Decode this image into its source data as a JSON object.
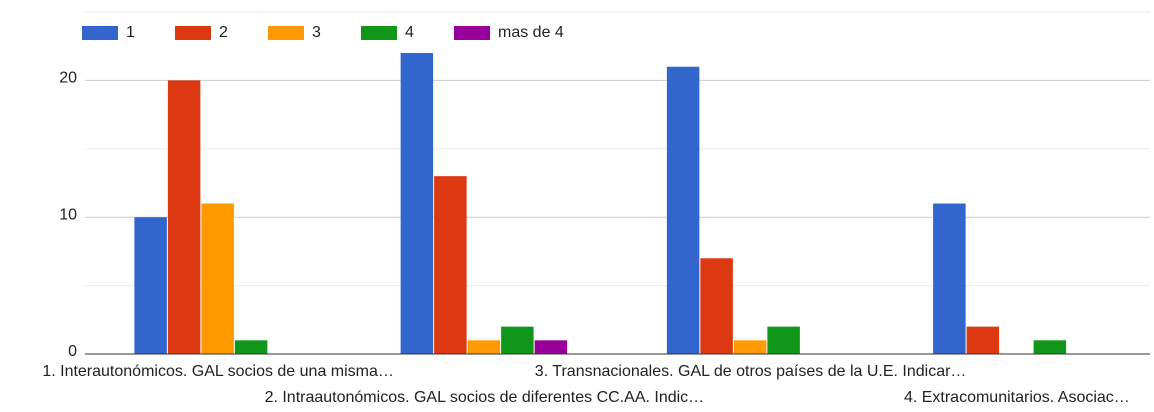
{
  "chart_data": {
    "type": "bar",
    "categories": [
      "1. Interautonómicos. GAL socios de una misma…",
      "2. Intraautonómicos. GAL socios de diferentes CC.AA. Indic…",
      "3. Transnacionales. GAL de otros países de la U.E. Indicar…",
      "4. Extracomunitarios. Asociac…"
    ],
    "series": [
      {
        "name": "1",
        "color": "#3366cc",
        "values": [
          10,
          22,
          21,
          11
        ]
      },
      {
        "name": "2",
        "color": "#dc3912",
        "values": [
          20,
          13,
          7,
          2
        ]
      },
      {
        "name": "3",
        "color": "#ff9900",
        "values": [
          11,
          1,
          1,
          0
        ]
      },
      {
        "name": "4",
        "color": "#109618",
        "values": [
          1,
          2,
          2,
          1
        ]
      },
      {
        "name": "mas de 4",
        "color": "#990099",
        "values": [
          0,
          1,
          0,
          0
        ]
      }
    ],
    "ylim": [
      0,
      25
    ],
    "yticks": [
      0,
      10,
      20
    ],
    "minor_yticks": [
      5,
      15,
      25
    ],
    "grid": true,
    "legend": "top"
  }
}
